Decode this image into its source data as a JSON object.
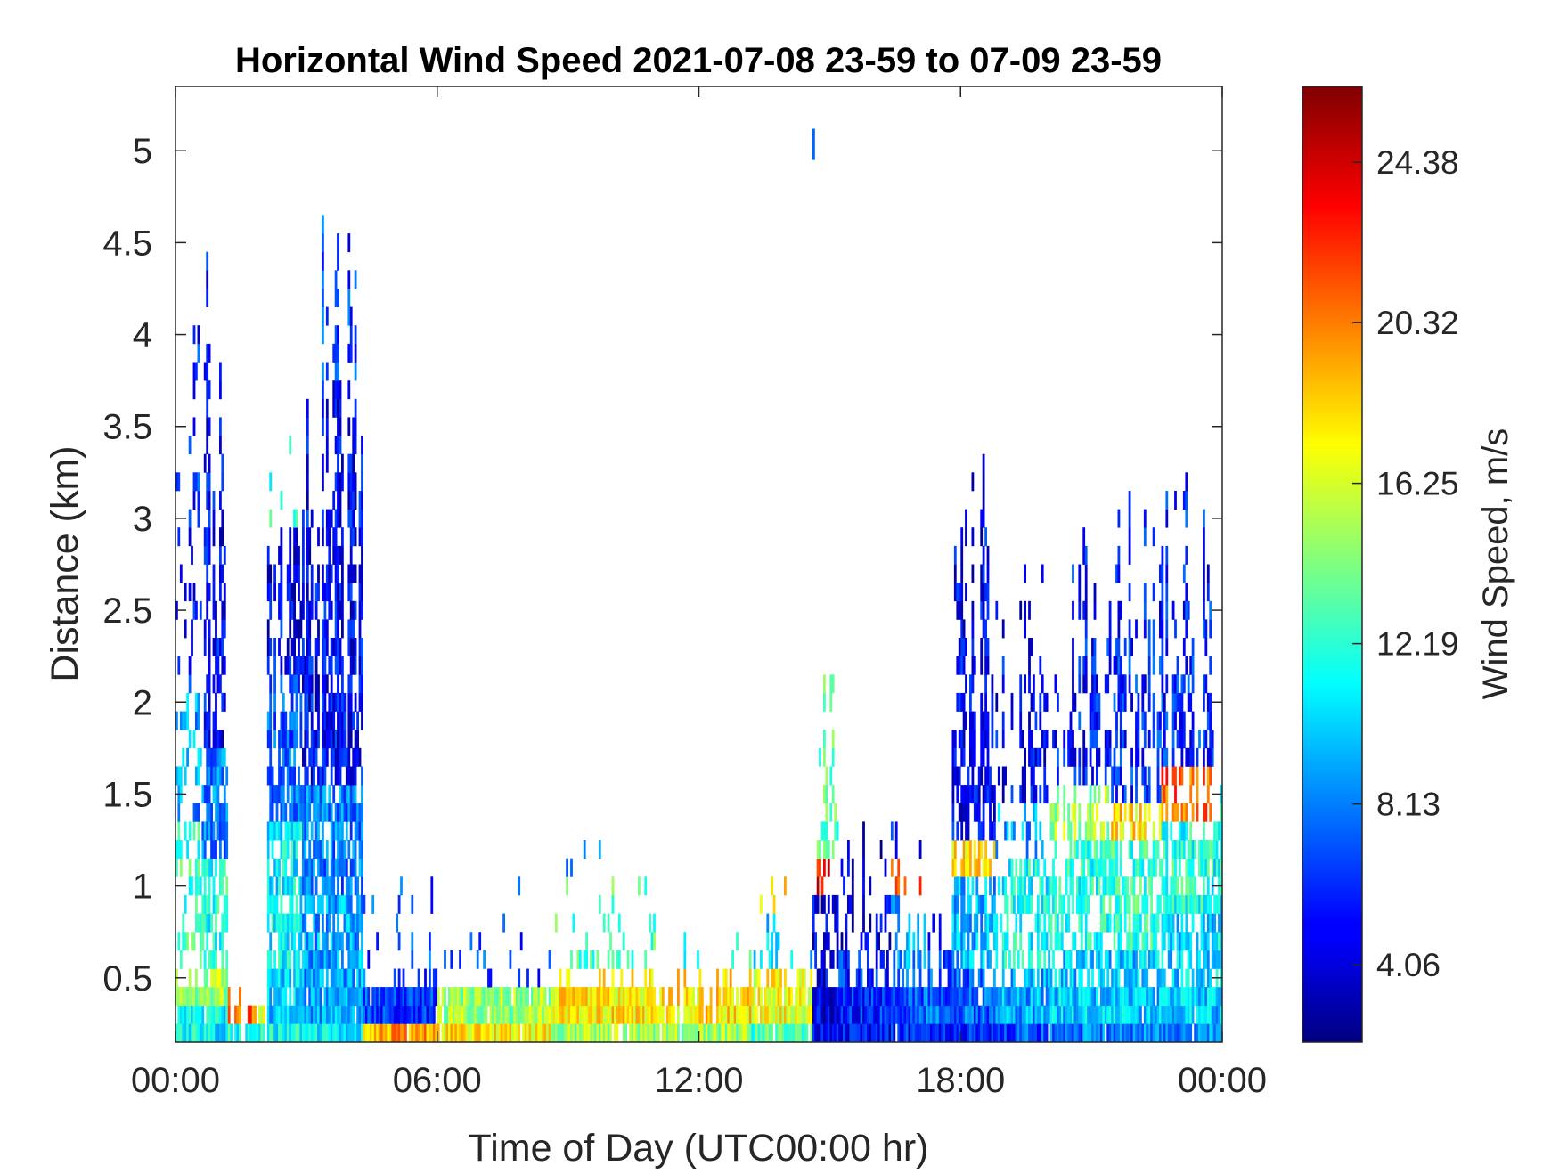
{
  "chart_data": {
    "type": "heatmap",
    "title": "Horizontal Wind Speed 2021-07-08 23-59 to 07-09 23-59",
    "xlabel": "Time of Day (UTC00:00 hr)",
    "ylabel": "Distance (km)",
    "colorbar_label": "Wind Speed, m/s",
    "x_ticks": [
      {
        "hour": 0,
        "label": "00:00"
      },
      {
        "hour": 6,
        "label": "06:00"
      },
      {
        "hour": 12,
        "label": "12:00"
      },
      {
        "hour": 18,
        "label": "18:00"
      },
      {
        "hour": 24,
        "label": "00:00"
      }
    ],
    "y_ticks": [
      {
        "value": 0.5,
        "label": "0.5"
      },
      {
        "value": 1,
        "label": "1"
      },
      {
        "value": 1.5,
        "label": "1.5"
      },
      {
        "value": 2,
        "label": "2"
      },
      {
        "value": 2.5,
        "label": "2.5"
      },
      {
        "value": 3,
        "label": "3"
      },
      {
        "value": 3.5,
        "label": "3.5"
      },
      {
        "value": 4,
        "label": "4"
      },
      {
        "value": 4.5,
        "label": "4.5"
      },
      {
        "value": 5,
        "label": "5"
      }
    ],
    "colorbar_ticks": [
      {
        "value": 4.06,
        "label": "4.06"
      },
      {
        "value": 8.13,
        "label": "8.13"
      },
      {
        "value": 12.19,
        "label": "12.19"
      },
      {
        "value": 16.25,
        "label": "16.25"
      },
      {
        "value": 20.32,
        "label": "20.32"
      },
      {
        "value": 24.38,
        "label": "24.38"
      }
    ],
    "xlim_hours": [
      0,
      24
    ],
    "ylim_km": [
      0.15,
      5.35
    ],
    "clim_ms": [
      2.1,
      26.3
    ],
    "colormap": "jet",
    "grid": false,
    "height_bin_km": 0.1,
    "column_profiles": [
      {
        "t0": 0.0,
        "t1": 0.6,
        "top_km": 4.6,
        "coverage": 0.35,
        "low": [
          {
            "from": 0.15,
            "to": 0.35,
            "v": 11.5
          },
          {
            "from": 0.35,
            "to": 0.6,
            "v": 14
          },
          {
            "from": 0.6,
            "to": 1.4,
            "v": 12.5
          },
          {
            "from": 1.4,
            "to": 2.2,
            "v": 9
          },
          {
            "from": 2.2,
            "to": 4.6,
            "v": 6
          }
        ]
      },
      {
        "t0": 0.6,
        "t1": 1.2,
        "top_km": 4.7,
        "coverage": 0.75,
        "low": [
          {
            "from": 0.15,
            "to": 0.35,
            "v": 11
          },
          {
            "from": 0.35,
            "to": 0.6,
            "v": 15
          },
          {
            "from": 0.6,
            "to": 1.2,
            "v": 12
          },
          {
            "from": 1.2,
            "to": 1.8,
            "v": 8
          },
          {
            "from": 1.8,
            "to": 4.7,
            "v": 5
          }
        ]
      },
      {
        "t0": 1.2,
        "t1": 1.9,
        "top_km": 0.45,
        "coverage": 0.95,
        "low": [
          {
            "from": 0.15,
            "to": 0.28,
            "v": 12
          },
          {
            "from": 0.28,
            "to": 0.38,
            "v": 21
          },
          {
            "from": 0.38,
            "to": 0.45,
            "v": 22.5
          }
        ]
      },
      {
        "t0": 1.9,
        "t1": 2.1,
        "top_km": 0.45,
        "coverage": 0.95,
        "low": [
          {
            "from": 0.15,
            "to": 0.3,
            "v": 12
          },
          {
            "from": 0.3,
            "to": 0.45,
            "v": 16
          }
        ]
      },
      {
        "t0": 2.1,
        "t1": 2.9,
        "top_km": 3.7,
        "coverage": 0.85,
        "low": [
          {
            "from": 0.15,
            "to": 0.3,
            "v": 11.5
          },
          {
            "from": 0.3,
            "to": 0.6,
            "v": 10
          },
          {
            "from": 0.6,
            "to": 1.4,
            "v": 11
          },
          {
            "from": 1.4,
            "to": 2.2,
            "v": 7.5
          },
          {
            "from": 2.2,
            "to": 3.0,
            "v": 5
          },
          {
            "from": 3.0,
            "to": 3.7,
            "v": 12
          }
        ]
      },
      {
        "t0": 2.9,
        "t1": 4.3,
        "top_km": 4.8,
        "coverage": 0.9,
        "low": [
          {
            "from": 0.15,
            "to": 0.3,
            "v": 11
          },
          {
            "from": 0.3,
            "to": 0.9,
            "v": 9
          },
          {
            "from": 0.9,
            "to": 1.6,
            "v": 8
          },
          {
            "from": 1.6,
            "to": 3.8,
            "v": 5
          },
          {
            "from": 3.8,
            "to": 4.8,
            "v": 6.5
          }
        ]
      },
      {
        "t0": 4.3,
        "t1": 4.6,
        "top_km": 1.0,
        "coverage": 0.25,
        "low": [
          {
            "from": 0.15,
            "to": 0.25,
            "v": 19
          },
          {
            "from": 0.25,
            "to": 1.0,
            "v": 7
          }
        ]
      },
      {
        "t0": 4.6,
        "t1": 6.0,
        "top_km": 1.2,
        "coverage": 0.22,
        "low": [
          {
            "from": 0.15,
            "to": 0.25,
            "v": 19.5
          },
          {
            "from": 0.25,
            "to": 1.2,
            "v": 6.5
          }
        ]
      },
      {
        "t0": 6.0,
        "t1": 8.6,
        "top_km": 1.1,
        "coverage": 0.18,
        "low": [
          {
            "from": 0.15,
            "to": 0.25,
            "v": 17.5
          },
          {
            "from": 0.25,
            "to": 0.45,
            "v": 15
          },
          {
            "from": 0.45,
            "to": 1.1,
            "v": 7
          }
        ]
      },
      {
        "t0": 8.6,
        "t1": 11.0,
        "top_km": 1.5,
        "coverage": 0.35,
        "low": [
          {
            "from": 0.15,
            "to": 0.3,
            "v": 15
          },
          {
            "from": 0.3,
            "to": 0.6,
            "v": 17.5
          },
          {
            "from": 0.6,
            "to": 1.0,
            "v": 13
          },
          {
            "from": 1.0,
            "to": 1.5,
            "v": 8
          }
        ]
      },
      {
        "t0": 11.0,
        "t1": 13.2,
        "top_km": 0.75,
        "coverage": 0.55,
        "low": [
          {
            "from": 0.15,
            "to": 0.3,
            "v": 15
          },
          {
            "from": 0.3,
            "to": 0.5,
            "v": 18
          },
          {
            "from": 0.5,
            "to": 0.75,
            "v": 12
          }
        ]
      },
      {
        "t0": 13.2,
        "t1": 14.6,
        "top_km": 1.1,
        "coverage": 0.55,
        "low": [
          {
            "from": 0.15,
            "to": 0.3,
            "v": 13
          },
          {
            "from": 0.3,
            "to": 0.5,
            "v": 17
          },
          {
            "from": 0.5,
            "to": 0.8,
            "v": 10
          },
          {
            "from": 0.8,
            "to": 1.1,
            "v": 19
          }
        ]
      },
      {
        "t0": 14.6,
        "t1": 15.2,
        "top_km": 2.4,
        "coverage": 0.6,
        "low": [
          {
            "from": 0.15,
            "to": 0.3,
            "v": 5
          },
          {
            "from": 0.3,
            "to": 0.9,
            "v": 4.5
          },
          {
            "from": 0.9,
            "to": 1.2,
            "v": 23
          },
          {
            "from": 1.2,
            "to": 2.4,
            "v": 13
          }
        ]
      },
      {
        "t0": 15.2,
        "t1": 16.4,
        "top_km": 1.4,
        "coverage": 0.6,
        "low": [
          {
            "from": 0.15,
            "to": 0.3,
            "v": 5
          },
          {
            "from": 0.3,
            "to": 0.7,
            "v": 6
          },
          {
            "from": 0.7,
            "to": 1.4,
            "v": 4
          }
        ]
      },
      {
        "t0": 16.4,
        "t1": 17.2,
        "top_km": 1.4,
        "coverage": 0.55,
        "low": [
          {
            "from": 0.15,
            "to": 0.3,
            "v": 5.5
          },
          {
            "from": 0.3,
            "to": 0.6,
            "v": 7
          },
          {
            "from": 0.6,
            "to": 0.9,
            "v": 9
          },
          {
            "from": 0.9,
            "to": 1.1,
            "v": 22
          },
          {
            "from": 1.1,
            "to": 1.4,
            "v": 5
          }
        ]
      },
      {
        "t0": 17.2,
        "t1": 17.8,
        "top_km": 1.2,
        "coverage": 0.55,
        "low": [
          {
            "from": 0.15,
            "to": 0.3,
            "v": 5.5
          },
          {
            "from": 0.3,
            "to": 0.7,
            "v": 7.5
          },
          {
            "from": 0.7,
            "to": 1.2,
            "v": 5
          }
        ]
      },
      {
        "t0": 17.8,
        "t1": 18.8,
        "top_km": 3.5,
        "coverage": 0.7,
        "low": [
          {
            "from": 0.15,
            "to": 0.3,
            "v": 6
          },
          {
            "from": 0.3,
            "to": 0.6,
            "v": 7.5
          },
          {
            "from": 0.6,
            "to": 1.0,
            "v": 9.5
          },
          {
            "from": 1.0,
            "to": 1.3,
            "v": 18
          },
          {
            "from": 1.3,
            "to": 3.5,
            "v": 5
          }
        ]
      },
      {
        "t0": 18.8,
        "t1": 20.0,
        "top_km": 3.0,
        "coverage": 0.6,
        "low": [
          {
            "from": 0.15,
            "to": 0.3,
            "v": 7
          },
          {
            "from": 0.3,
            "to": 0.6,
            "v": 9
          },
          {
            "from": 0.6,
            "to": 1.2,
            "v": 11.5
          },
          {
            "from": 1.2,
            "to": 1.5,
            "v": 9
          },
          {
            "from": 1.5,
            "to": 3.0,
            "v": 5
          }
        ]
      },
      {
        "t0": 20.0,
        "t1": 21.4,
        "top_km": 3.0,
        "coverage": 0.75,
        "low": [
          {
            "from": 0.15,
            "to": 0.3,
            "v": 8
          },
          {
            "from": 0.3,
            "to": 0.7,
            "v": 10
          },
          {
            "from": 0.7,
            "to": 1.3,
            "v": 12
          },
          {
            "from": 1.3,
            "to": 1.6,
            "v": 15
          },
          {
            "from": 1.6,
            "to": 3.0,
            "v": 5.5
          }
        ]
      },
      {
        "t0": 21.4,
        "t1": 22.6,
        "top_km": 3.3,
        "coverage": 0.7,
        "low": [
          {
            "from": 0.15,
            "to": 0.3,
            "v": 8
          },
          {
            "from": 0.3,
            "to": 0.7,
            "v": 10
          },
          {
            "from": 0.7,
            "to": 1.3,
            "v": 12.5
          },
          {
            "from": 1.3,
            "to": 1.5,
            "v": 18
          },
          {
            "from": 1.5,
            "to": 3.3,
            "v": 6
          }
        ]
      },
      {
        "t0": 22.6,
        "t1": 23.8,
        "top_km": 3.5,
        "coverage": 0.7,
        "low": [
          {
            "from": 0.15,
            "to": 0.3,
            "v": 8.5
          },
          {
            "from": 0.3,
            "to": 0.8,
            "v": 10
          },
          {
            "from": 0.8,
            "to": 1.4,
            "v": 12
          },
          {
            "from": 1.4,
            "to": 1.7,
            "v": 21
          },
          {
            "from": 1.7,
            "to": 3.5,
            "v": 6
          }
        ]
      },
      {
        "t0": 23.8,
        "t1": 24.0,
        "top_km": 3.25,
        "coverage": 0.9,
        "low": [
          {
            "from": 0.15,
            "to": 0.4,
            "v": 9
          },
          {
            "from": 0.4,
            "to": 1.6,
            "v": 11
          },
          {
            "from": 1.6,
            "to": 3.25,
            "v": 5
          }
        ]
      }
    ],
    "isolated_streaks": [
      {
        "t": 14.6,
        "from_km": 4.95,
        "to_km": 5.12,
        "v": 7.5
      }
    ]
  }
}
